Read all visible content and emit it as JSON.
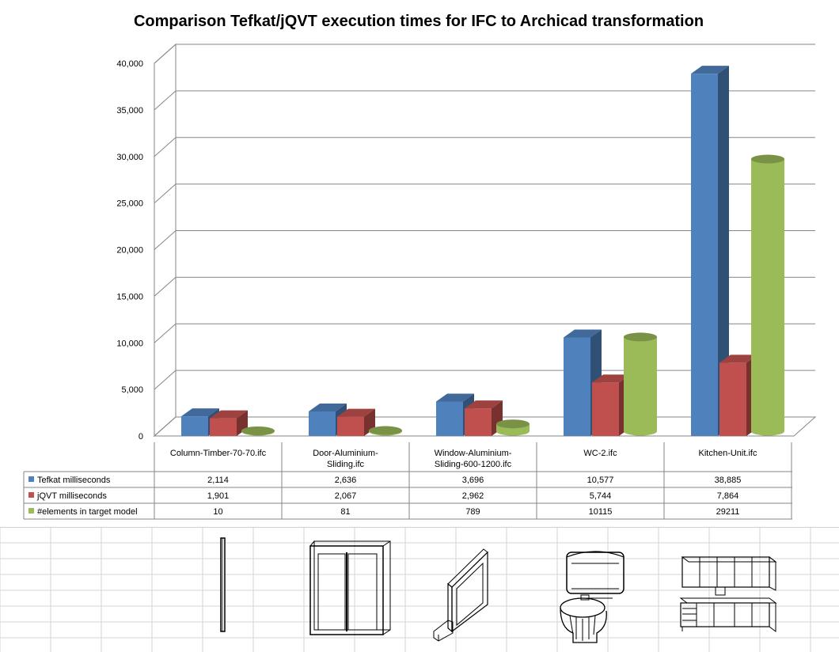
{
  "chart_data": {
    "type": "bar",
    "title": "Comparison Tefkat/jQVT execution times for IFC to Archicad transformation",
    "categories": [
      [
        "Column-Timber-70-70.ifc"
      ],
      [
        "Door-Aluminium-",
        "Sliding.ifc"
      ],
      [
        "Window-Aluminium-",
        "Sliding-600-1200.ifc"
      ],
      [
        "WC-2.ifc"
      ],
      [
        "Kitchen-Unit.ifc"
      ]
    ],
    "series": [
      {
        "name": "Tefkat milliseconds",
        "values": [
          2114,
          2636,
          3696,
          10577,
          38885
        ],
        "labels": [
          "2,114",
          "2,636",
          "3,696",
          "10,577",
          "38,885"
        ],
        "color": "#4f81bd",
        "shape": "box"
      },
      {
        "name": "jQVT milliseconds",
        "values": [
          1901,
          2067,
          2962,
          5744,
          7864
        ],
        "labels": [
          "1,901",
          "2,067",
          "2,962",
          "5,744",
          "7,864"
        ],
        "color": "#c0504d",
        "shape": "box"
      },
      {
        "name": "#elements in target model",
        "values": [
          10,
          81,
          789,
          10115,
          29211
        ],
        "labels": [
          "10",
          "81",
          "789",
          "10115",
          "29211"
        ],
        "color": "#9bbb59",
        "shape": "cylinder"
      }
    ],
    "yticks": [
      "0",
      "5,000",
      "10,000",
      "15,000",
      "20,000",
      "25,000",
      "30,000",
      "35,000",
      "40,000"
    ],
    "ylim": [
      0,
      40000
    ],
    "grid": true,
    "legend": "data-table"
  },
  "thumbnail_icons": [
    "column-thumbnail",
    "door-thumbnail",
    "window-thumbnail",
    "wc-thumbnail",
    "kitchen-unit-thumbnail"
  ]
}
